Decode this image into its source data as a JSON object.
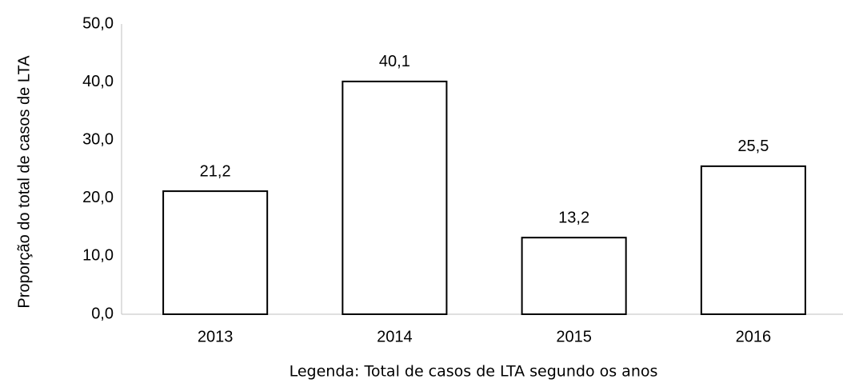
{
  "chart_data": {
    "type": "bar",
    "y_label": "Proporção do total de casos de LTA",
    "x_label": "Legenda: Total de casos de LTA segundo os anos",
    "categories": [
      "2013",
      "2014",
      "2015",
      "2016"
    ],
    "values": [
      21.2,
      40.1,
      13.2,
      25.5
    ],
    "value_labels": [
      "21,2",
      "40,1",
      "13,2",
      "25,5"
    ],
    "color": "#ffffff",
    "edgecolor": "#000000",
    "ylim": [
      0,
      50
    ],
    "yticks": [
      {
        "value": 0,
        "label": "0,0"
      },
      {
        "value": 10,
        "label": "10,0"
      },
      {
        "value": 20,
        "label": "20,0"
      },
      {
        "value": 30,
        "label": "30,0"
      },
      {
        "value": 40,
        "label": "40,0"
      },
      {
        "value": 50,
        "label": "50,0"
      }
    ],
    "grid": false
  }
}
